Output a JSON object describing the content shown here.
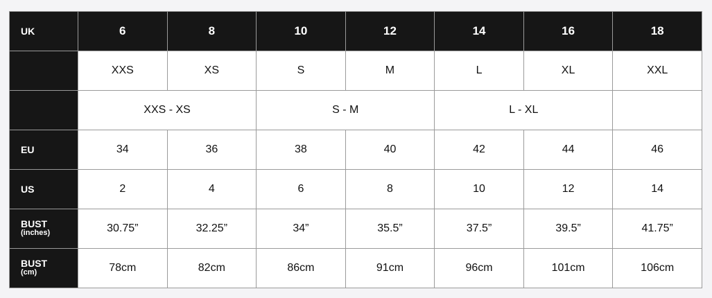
{
  "table": {
    "header": {
      "label": "UK",
      "cells": [
        "6",
        "8",
        "10",
        "12",
        "14",
        "16",
        "18"
      ]
    },
    "rows": [
      {
        "cells": [
          "XXS",
          "XS",
          "S",
          "M",
          "L",
          "XL",
          "XXL"
        ]
      },
      {
        "cells": [
          "XXS - XS",
          "S - M",
          "L - XL"
        ]
      },
      {
        "label": "EU",
        "cells": [
          "34",
          "36",
          "38",
          "40",
          "42",
          "44",
          "46"
        ]
      },
      {
        "label": "US",
        "cells": [
          "2",
          "4",
          "6",
          "8",
          "10",
          "12",
          "14"
        ]
      },
      {
        "label": "BUST",
        "sublabel": "(inches)",
        "cells": [
          "30.75”",
          "32.25”",
          "34”",
          "35.5”",
          "37.5”",
          "39.5”",
          "41.75”"
        ]
      },
      {
        "label": "BUST",
        "sublabel": "(cm)",
        "cells": [
          "78cm",
          "82cm",
          "86cm",
          "91cm",
          "96cm",
          "101cm",
          "106cm"
        ]
      }
    ]
  }
}
